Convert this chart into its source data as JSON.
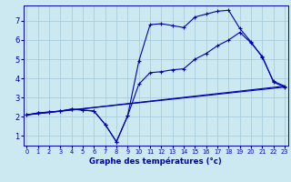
{
  "xlabel": "Graphe des températures (°c)",
  "background_color": "#cce8f0",
  "grid_color": "#aaccda",
  "line_color": "#0000bb",
  "x_ticks": [
    0,
    1,
    2,
    3,
    4,
    5,
    6,
    7,
    8,
    9,
    10,
    11,
    12,
    13,
    14,
    15,
    16,
    17,
    18,
    19,
    20,
    21,
    22,
    23
  ],
  "y_ticks": [
    1,
    2,
    3,
    4,
    5,
    6,
    7
  ],
  "xlim": [
    -0.3,
    23.3
  ],
  "ylim": [
    0.5,
    7.8
  ],
  "series1_x": [
    0,
    1,
    2,
    3,
    4,
    5,
    6,
    7,
    8,
    9,
    10,
    11,
    12,
    13,
    14,
    15,
    16,
    17,
    18,
    19,
    20,
    21,
    22,
    23
  ],
  "series1_y": [
    2.1,
    2.2,
    2.25,
    2.3,
    2.4,
    2.35,
    2.3,
    1.6,
    0.7,
    2.05,
    4.9,
    6.8,
    6.85,
    6.75,
    6.65,
    7.2,
    7.35,
    7.5,
    7.55,
    6.6,
    5.9,
    5.1,
    3.85,
    3.6
  ],
  "series2_x": [
    0,
    1,
    2,
    3,
    4,
    5,
    6,
    7,
    8,
    9,
    10,
    11,
    12,
    13,
    14,
    15,
    16,
    17,
    18,
    19,
    20,
    21,
    22,
    23
  ],
  "series2_y": [
    2.1,
    2.2,
    2.25,
    2.3,
    2.4,
    2.35,
    2.3,
    1.6,
    0.7,
    2.05,
    3.7,
    4.3,
    4.35,
    4.45,
    4.5,
    5.0,
    5.3,
    5.7,
    6.0,
    6.4,
    5.85,
    5.15,
    3.8,
    3.55
  ],
  "series3_x": [
    0,
    23
  ],
  "series3_y": [
    2.1,
    3.6
  ],
  "series4_x": [
    0,
    23
  ],
  "series4_y": [
    2.1,
    3.55
  ]
}
